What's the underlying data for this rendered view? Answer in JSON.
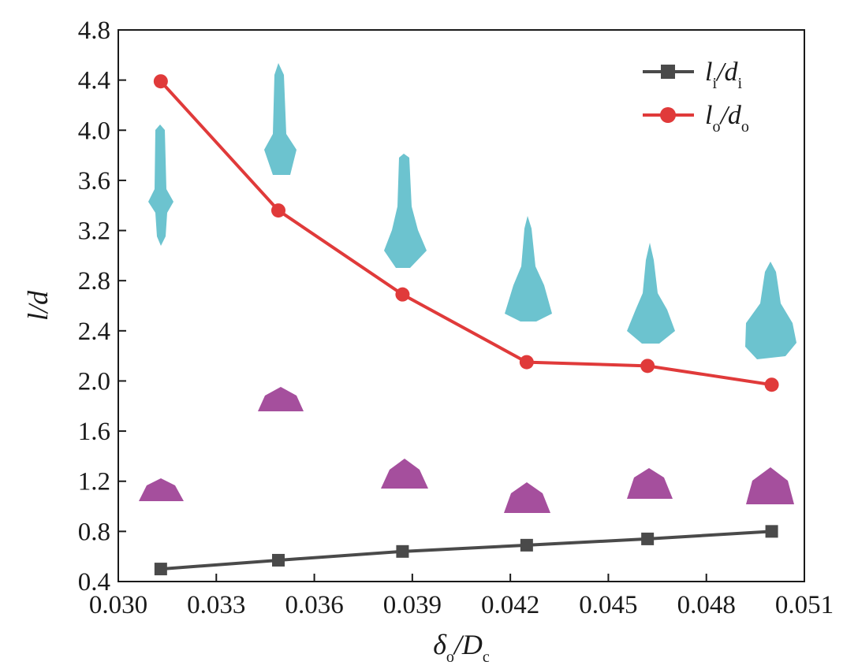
{
  "chart_data": {
    "type": "line",
    "xlabel": {
      "main": "δ",
      "sub1": "o",
      "mid": "/D",
      "sub2": "c"
    },
    "ylabel": "l/d",
    "xlim": [
      0.03,
      0.051
    ],
    "ylim": [
      0.4,
      4.8
    ],
    "xticks": [
      "0.030",
      "0.033",
      "0.036",
      "0.039",
      "0.042",
      "0.045",
      "0.048",
      "0.051"
    ],
    "yticks": [
      "0.4",
      "0.8",
      "1.2",
      "1.6",
      "2.0",
      "2.4",
      "2.8",
      "3.2",
      "3.6",
      "4.0",
      "4.4",
      "4.8"
    ],
    "x": [
      0.0313,
      0.0349,
      0.0387,
      0.0425,
      0.0462,
      0.05
    ],
    "series": [
      {
        "name": "li/di",
        "legend": {
          "a": "l",
          "asub": "i",
          "b": "/d",
          "bsub": "i"
        },
        "values": [
          0.5,
          0.57,
          0.64,
          0.69,
          0.74,
          0.8
        ],
        "color": "#4a4a4a",
        "marker": "square"
      },
      {
        "name": "lo/do",
        "legend": {
          "a": "l",
          "asub": "o",
          "b": "/d",
          "bsub": "o"
        },
        "values": [
          4.39,
          3.36,
          2.69,
          2.15,
          2.12,
          1.97
        ],
        "color": "#e03a3a",
        "marker": "circle"
      }
    ],
    "legend_position": "top-right",
    "grid": false,
    "colors": {
      "cyan_shape": "#6cc3cf",
      "magenta_shape": "#a54f9d",
      "axis": "#1a1a1a"
    }
  }
}
